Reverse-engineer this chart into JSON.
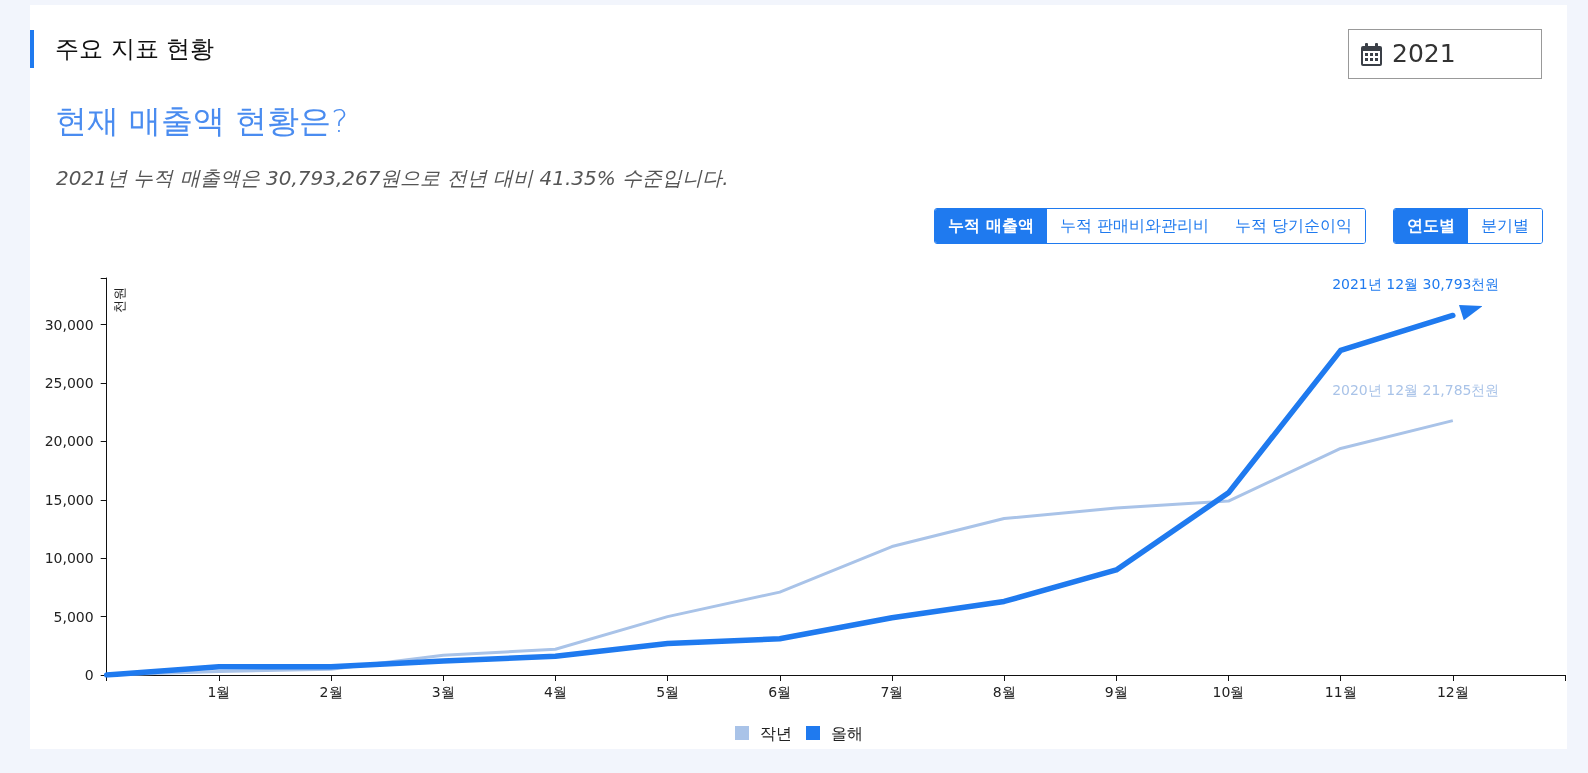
{
  "chart_data": {
    "type": "line",
    "title": "주요 지표 현황",
    "subtitle": "현재 매출액 현황은?",
    "ylabel": "천원",
    "annotations": [
      "2021년 누적 매출액은 30,793,267원으로 전년 대비 41.35% 수준입니다.",
      "2021",
      "누적 매출액",
      "누적 판매비와관리비",
      "누적 당기순이익",
      "연도별",
      "분기별",
      {
        "text": "2021년 12월 30,793천원",
        "x": 12,
        "y": 30793
      },
      {
        "text": "2020년 12월 21,785천원",
        "x": 12,
        "y": 21785
      }
    ],
    "x": [
      0,
      1,
      2,
      3,
      4,
      5,
      6,
      7,
      8,
      9,
      10,
      11,
      12
    ],
    "series": [
      {
        "name": "작년",
        "color": "#a9c3e8",
        "values": [
          0,
          300,
          500,
          1700,
          2200,
          5000,
          7100,
          11000,
          13400,
          14300,
          14900,
          19400,
          21785
        ]
      },
      {
        "name": "올해",
        "color": "#1f7aef",
        "values": [
          0,
          700,
          700,
          1200,
          1600,
          2700,
          3100,
          4900,
          6300,
          9000,
          15600,
          27800,
          30793
        ]
      }
    ],
    "xlim": [
      0,
      13
    ],
    "xticks": [
      {
        "value": 0,
        "label": null
      },
      {
        "value": 1,
        "label": "1월"
      },
      {
        "value": 2,
        "label": "2월"
      },
      {
        "value": 3,
        "label": "3월"
      },
      {
        "value": 4,
        "label": "4월"
      },
      {
        "value": 5,
        "label": "5월"
      },
      {
        "value": 6,
        "label": "6월"
      },
      {
        "value": 7,
        "label": "7월"
      },
      {
        "value": 8,
        "label": "8월"
      },
      {
        "value": 9,
        "label": "9월"
      },
      {
        "value": 10,
        "label": "10월"
      },
      {
        "value": 11,
        "label": "11월"
      },
      {
        "value": 12,
        "label": "12월"
      },
      {
        "value": 13,
        "label": null
      }
    ],
    "ylim": [
      0,
      34000
    ],
    "yticks": [
      0,
      {
        "value": 5000,
        "label": "5,000"
      },
      {
        "value": 10000,
        "label": "10,000"
      },
      {
        "value": 15000,
        "label": "15,000"
      },
      {
        "value": 20000,
        "label": "20,000"
      },
      {
        "value": 25000,
        "label": "25,000"
      },
      {
        "value": 30000,
        "label": "30,000"
      },
      {
        "value": 34000,
        "label": null
      }
    ],
    "grid": false,
    "legend": "bottom",
    "marker": "none",
    "line_style": "solid"
  }
}
